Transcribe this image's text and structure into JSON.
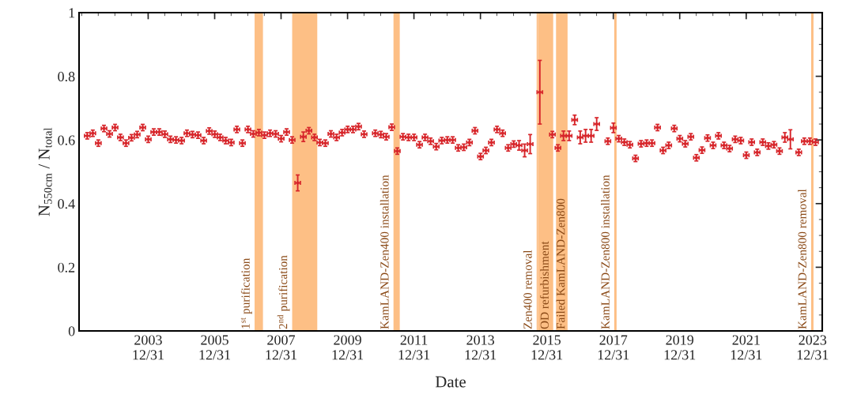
{
  "chart_data": {
    "type": "scatter",
    "xlabel": "Date",
    "ylabel": "N$_{550cm}$ / N$_{total}$",
    "xlim": [
      "2001-12-01",
      "2024-04-15"
    ],
    "ylim": [
      0,
      1
    ],
    "xticks": [
      {
        "value": "2003-12-31",
        "label": "2003\n12/31"
      },
      {
        "value": "2005-12-31",
        "label": "2005\n12/31"
      },
      {
        "value": "2007-12-31",
        "label": "2007\n12/31"
      },
      {
        "value": "2009-12-31",
        "label": "2009\n12/31"
      },
      {
        "value": "2011-12-31",
        "label": "2011\n12/31"
      },
      {
        "value": "2013-12-31",
        "label": "2013\n12/31"
      },
      {
        "value": "2015-12-31",
        "label": "2015\n12/31"
      },
      {
        "value": "2017-12-31",
        "label": "2017\n12/31"
      },
      {
        "value": "2019-12-31",
        "label": "2019\n12/31"
      },
      {
        "value": "2021-12-31",
        "label": "2021\n12/31"
      },
      {
        "value": "2023-12-31",
        "label": "2023\n12/31"
      }
    ],
    "yticks": [
      0,
      0.2,
      0.4,
      0.6,
      0.8,
      1
    ],
    "grid": false,
    "legend": false,
    "bands": [
      {
        "axis": "x",
        "from": "2007-03-15",
        "to": "2007-06-15",
        "label": "1$^{st}$ purification",
        "color": "#fdbf85"
      },
      {
        "axis": "x",
        "from": "2008-05-01",
        "to": "2009-02-01",
        "label": "2$^{nd}$ purification",
        "color": "#fdbf85"
      },
      {
        "axis": "x",
        "from": "2011-05-20",
        "to": "2011-07-28",
        "label": "KamLAND-Zen400 installation",
        "color": "#fdbf85"
      },
      {
        "axis": "x",
        "from": "2015-09-10",
        "to": "2015-09-25",
        "label": "Zen400 removal",
        "color": "#fdbf85"
      },
      {
        "axis": "x",
        "from": "2015-09-25",
        "to": "2016-03-10",
        "label": "OD refurbishment",
        "color": "#fdbf85"
      },
      {
        "axis": "x",
        "from": "2016-04-10",
        "to": "2016-08-15",
        "label": "Failed KamLAND-Zen800",
        "color": "#fdbf85"
      },
      {
        "axis": "x",
        "from": "2018-01-10",
        "to": "2018-02-05",
        "label": "KamLAND-Zen800 installation",
        "color": "#fdbf85"
      },
      {
        "axis": "x",
        "from": "2023-12-15",
        "to": "2024-01-10",
        "label": "KamLAND-Zen800 removal",
        "color": "#fdbf85"
      }
    ],
    "series": [
      {
        "color": "#d7262b",
        "x": [
          "2002-03",
          "2002-05",
          "2002-07",
          "2002-09",
          "2002-11",
          "2003-01",
          "2003-03",
          "2003-05",
          "2003-07",
          "2003-09",
          "2003-11",
          "2004-01",
          "2004-03",
          "2004-05",
          "2004-07",
          "2004-09",
          "2004-11",
          "2005-01",
          "2005-03",
          "2005-05",
          "2005-07",
          "2005-09",
          "2005-11",
          "2006-01",
          "2006-03",
          "2006-05",
          "2006-07",
          "2006-09",
          "2006-11",
          "2007-01",
          "2007-03",
          "2007-05",
          "2007-07",
          "2007-09",
          "2007-11",
          "2008-01",
          "2008-03",
          "2008-05",
          "2008-07",
          "2008-09",
          "2008-11",
          "2009-01",
          "2009-03",
          "2009-05",
          "2009-07",
          "2009-09",
          "2009-11",
          "2010-01",
          "2010-03",
          "2010-05",
          "2010-07",
          "2010-11",
          "2011-01",
          "2011-03",
          "2011-05",
          "2011-07",
          "2011-09",
          "2011-11",
          "2012-01",
          "2012-03",
          "2012-05",
          "2012-07",
          "2012-09",
          "2012-11",
          "2013-01",
          "2013-03",
          "2013-05",
          "2013-07",
          "2013-09",
          "2013-11",
          "2014-01",
          "2014-03",
          "2014-05",
          "2014-07",
          "2014-09",
          "2014-11",
          "2015-01",
          "2015-03",
          "2015-05",
          "2015-07",
          "2015-10-15",
          "2016-03",
          "2016-05",
          "2016-07",
          "2016-09",
          "2016-11",
          "2017-01",
          "2017-03",
          "2017-05",
          "2017-07",
          "2017-11",
          "2018-01",
          "2018-03",
          "2018-05",
          "2018-07",
          "2018-09",
          "2018-11",
          "2019-01",
          "2019-03",
          "2019-05",
          "2019-07",
          "2019-09",
          "2019-11",
          "2020-01",
          "2020-03",
          "2020-05",
          "2020-07",
          "2020-09",
          "2020-11",
          "2021-01",
          "2021-03",
          "2021-05",
          "2021-07",
          "2021-09",
          "2021-11",
          "2022-01",
          "2022-03",
          "2022-05",
          "2022-07",
          "2022-09",
          "2022-11",
          "2023-01",
          "2023-03",
          "2023-05",
          "2023-08",
          "2023-10",
          "2023-12",
          "2024-02"
        ],
        "values": [
          0.613,
          0.621,
          0.59,
          0.636,
          0.619,
          0.639,
          0.608,
          0.59,
          0.607,
          0.617,
          0.639,
          0.602,
          0.625,
          0.625,
          0.618,
          0.602,
          0.6,
          0.598,
          0.621,
          0.617,
          0.615,
          0.598,
          0.628,
          0.618,
          0.608,
          0.598,
          0.592,
          0.633,
          0.59,
          0.633,
          0.619,
          0.623,
          0.615,
          0.621,
          0.619,
          0.604,
          0.625,
          0.6,
          0.465,
          0.61,
          0.629,
          0.608,
          0.592,
          0.59,
          0.619,
          0.608,
          0.623,
          0.633,
          0.633,
          0.642,
          0.618,
          0.621,
          0.617,
          0.61,
          0.64,
          0.565,
          0.61,
          0.608,
          0.608,
          0.585,
          0.608,
          0.596,
          0.579,
          0.598,
          0.6,
          0.6,
          0.575,
          0.577,
          0.592,
          0.629,
          0.548,
          0.567,
          0.592,
          0.633,
          0.621,
          0.575,
          0.587,
          0.583,
          0.567,
          0.587,
          0.75,
          0.617,
          0.575,
          0.613,
          0.613,
          0.663,
          0.608,
          0.613,
          0.613,
          0.65,
          0.596,
          0.638,
          0.604,
          0.593,
          0.585,
          0.542,
          0.588,
          0.59,
          0.59,
          0.639,
          0.567,
          0.583,
          0.636,
          0.604,
          0.588,
          0.61,
          0.544,
          0.568,
          0.606,
          0.583,
          0.613,
          0.583,
          0.573,
          0.602,
          0.598,
          0.552,
          0.593,
          0.561,
          0.593,
          0.581,
          0.585,
          0.565,
          0.608,
          0.602,
          0.561,
          0.596,
          0.596,
          0.593
        ],
        "errors": [
          0.01,
          0.01,
          0.01,
          0.01,
          0.01,
          0.01,
          0.01,
          0.01,
          0.01,
          0.01,
          0.01,
          0.01,
          0.01,
          0.01,
          0.01,
          0.01,
          0.01,
          0.01,
          0.01,
          0.01,
          0.01,
          0.01,
          0.01,
          0.01,
          0.01,
          0.01,
          0.01,
          0.01,
          0.01,
          0.01,
          0.01,
          0.01,
          0.01,
          0.01,
          0.01,
          0.01,
          0.01,
          0.01,
          0.025,
          0.015,
          0.01,
          0.01,
          0.01,
          0.01,
          0.01,
          0.01,
          0.01,
          0.01,
          0.01,
          0.01,
          0.01,
          0.01,
          0.01,
          0.01,
          0.01,
          0.01,
          0.01,
          0.01,
          0.01,
          0.01,
          0.01,
          0.01,
          0.01,
          0.01,
          0.01,
          0.01,
          0.01,
          0.01,
          0.01,
          0.01,
          0.01,
          0.01,
          0.01,
          0.01,
          0.01,
          0.01,
          0.01,
          0.015,
          0.02,
          0.03,
          0.1,
          0.01,
          0.01,
          0.015,
          0.015,
          0.015,
          0.02,
          0.02,
          0.02,
          0.02,
          0.01,
          0.015,
          0.01,
          0.01,
          0.01,
          0.01,
          0.01,
          0.01,
          0.01,
          0.01,
          0.01,
          0.01,
          0.01,
          0.01,
          0.01,
          0.01,
          0.01,
          0.01,
          0.01,
          0.01,
          0.01,
          0.01,
          0.01,
          0.01,
          0.01,
          0.01,
          0.01,
          0.01,
          0.01,
          0.01,
          0.01,
          0.01,
          0.015,
          0.03,
          0.01,
          0.01,
          0.01,
          0.01
        ],
        "xerrors": [
          30,
          30,
          30,
          30,
          30,
          30,
          30,
          30,
          30,
          30,
          30,
          30,
          30,
          30,
          30,
          30,
          30,
          30,
          30,
          30,
          30,
          30,
          30,
          30,
          30,
          30,
          30,
          30,
          30,
          30,
          30,
          30,
          30,
          30,
          30,
          30,
          30,
          30,
          30,
          30,
          30,
          30,
          30,
          30,
          30,
          30,
          30,
          30,
          30,
          30,
          30,
          30,
          30,
          30,
          30,
          30,
          30,
          30,
          30,
          30,
          30,
          30,
          30,
          30,
          30,
          30,
          30,
          30,
          30,
          30,
          30,
          30,
          30,
          30,
          30,
          30,
          30,
          30,
          30,
          30,
          30,
          30,
          30,
          30,
          30,
          30,
          30,
          30,
          30,
          30,
          30,
          30,
          30,
          30,
          30,
          30,
          30,
          30,
          30,
          30,
          30,
          30,
          30,
          30,
          30,
          30,
          30,
          30,
          30,
          30,
          30,
          30,
          30,
          30,
          30,
          30,
          30,
          30,
          30,
          30,
          30,
          30,
          30,
          30,
          30,
          30,
          30,
          30
        ]
      }
    ]
  }
}
